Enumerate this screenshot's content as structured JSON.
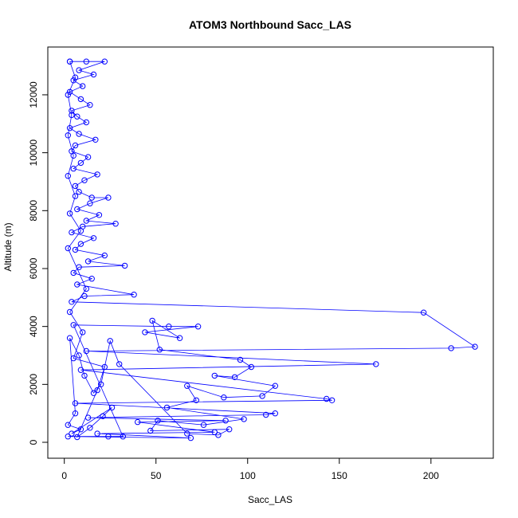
{
  "chart_data": {
    "type": "line",
    "title": "ATOM3 Northbound Sacc_LAS",
    "xlabel": "Sacc_LAS",
    "ylabel": "Altitude (m)",
    "xlim": [
      0,
      225
    ],
    "ylim": [
      0,
      13200
    ],
    "x_ticks": [
      0,
      50,
      100,
      150,
      200
    ],
    "y_ticks": [
      0,
      2000,
      4000,
      6000,
      8000,
      10000,
      12000
    ],
    "x_tick_labels": [
      "0",
      "50",
      "100",
      "150",
      "200"
    ],
    "y_tick_labels": [
      "0",
      "2000",
      "4000",
      "6000",
      "8000",
      "10000",
      "12000"
    ],
    "grid": false,
    "legend": "none",
    "marker": "open-circle",
    "colors": {
      "series": "#0000ff",
      "axis": "#000000"
    },
    "series": [
      {
        "values_note_points_as_x_y": true,
        "points": [
          [
            3,
            13150
          ],
          [
            12,
            13150
          ],
          [
            22,
            13150
          ],
          [
            8,
            12850
          ],
          [
            16,
            12700
          ],
          [
            5,
            12500
          ],
          [
            10,
            12300
          ],
          [
            3,
            12100
          ],
          [
            9,
            11850
          ],
          [
            14,
            11650
          ],
          [
            4,
            11450
          ],
          [
            7,
            11250
          ],
          [
            12,
            11050
          ],
          [
            3,
            10850
          ],
          [
            8,
            10650
          ],
          [
            17,
            10450
          ],
          [
            6,
            10250
          ],
          [
            4,
            10050
          ],
          [
            13,
            9850
          ],
          [
            9,
            9650
          ],
          [
            5,
            9450
          ],
          [
            18,
            9250
          ],
          [
            11,
            9050
          ],
          [
            6,
            8850
          ],
          [
            8,
            8650
          ],
          [
            15,
            8450
          ],
          [
            24,
            8450
          ],
          [
            14,
            8250
          ],
          [
            7,
            8050
          ],
          [
            19,
            7850
          ],
          [
            12,
            7650
          ],
          [
            28,
            7550
          ],
          [
            10,
            7450
          ],
          [
            4,
            7250
          ],
          [
            16,
            7050
          ],
          [
            9,
            6850
          ],
          [
            6,
            6650
          ],
          [
            22,
            6450
          ],
          [
            13,
            6250
          ],
          [
            33,
            6100
          ],
          [
            8,
            6050
          ],
          [
            5,
            5850
          ],
          [
            15,
            5650
          ],
          [
            7,
            5450
          ],
          [
            38,
            5100
          ],
          [
            11,
            5050
          ],
          [
            4,
            4850
          ],
          [
            196,
            4480
          ],
          [
            224,
            3300
          ],
          [
            211,
            3250
          ],
          [
            12,
            3150
          ],
          [
            170,
            2700
          ],
          [
            9,
            2500
          ],
          [
            143,
            1500
          ],
          [
            146,
            1450
          ],
          [
            6,
            1350
          ],
          [
            115,
            1000
          ],
          [
            110,
            950
          ],
          [
            13,
            850
          ],
          [
            88,
            750
          ],
          [
            40,
            700
          ],
          [
            82,
            350
          ],
          [
            18,
            300
          ],
          [
            69,
            150
          ],
          [
            2,
            200
          ],
          [
            24,
            200
          ],
          [
            32,
            200
          ],
          [
            5,
            4050
          ],
          [
            57,
            4000
          ],
          [
            73,
            4000
          ],
          [
            44,
            3800
          ],
          [
            63,
            3600
          ],
          [
            48,
            4200
          ],
          [
            52,
            3200
          ],
          [
            96,
            2850
          ],
          [
            102,
            2600
          ],
          [
            93,
            2250
          ],
          [
            82,
            2300
          ],
          [
            115,
            1950
          ],
          [
            108,
            1600
          ],
          [
            87,
            1550
          ],
          [
            67,
            1950
          ],
          [
            72,
            1450
          ],
          [
            56,
            1200
          ],
          [
            98,
            800
          ],
          [
            76,
            600
          ],
          [
            51,
            750
          ],
          [
            47,
            400
          ],
          [
            90,
            450
          ],
          [
            84,
            250
          ],
          [
            67,
            300
          ],
          [
            30,
            2700
          ],
          [
            25,
            3500
          ],
          [
            20,
            2000
          ],
          [
            16,
            1700
          ],
          [
            11,
            2300
          ],
          [
            8,
            3000
          ],
          [
            3,
            3600
          ],
          [
            6,
            1000
          ],
          [
            2,
            600
          ],
          [
            9,
            450
          ],
          [
            4,
            300
          ],
          [
            26,
            1200
          ],
          [
            21,
            900
          ],
          [
            14,
            500
          ],
          [
            7,
            180
          ],
          [
            18,
            1800
          ],
          [
            22,
            2600
          ],
          [
            5,
            2900
          ],
          [
            10,
            3800
          ],
          [
            3,
            4500
          ],
          [
            12,
            5300
          ],
          [
            2,
            6700
          ],
          [
            9,
            7300
          ],
          [
            3,
            7900
          ],
          [
            6,
            8500
          ],
          [
            2,
            9200
          ],
          [
            5,
            9900
          ],
          [
            2,
            10600
          ],
          [
            4,
            11300
          ],
          [
            2,
            12000
          ],
          [
            6,
            12600
          ],
          [
            3,
            13150
          ]
        ]
      }
    ]
  }
}
